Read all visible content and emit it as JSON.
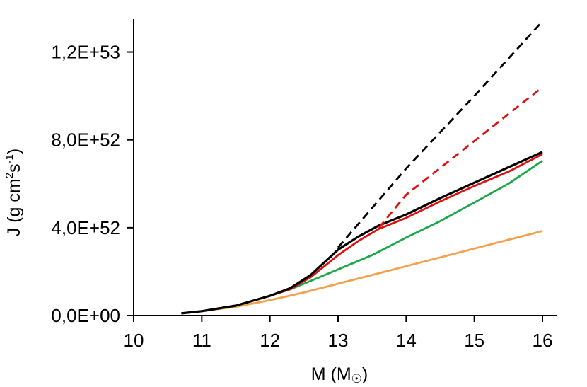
{
  "chart_data": {
    "type": "line",
    "xlabel": "M (M",
    "xlabel_symbol": "☉",
    "xlabel_close": ")",
    "ylabel_main": "J (g cm",
    "ylabel_sup1": "2",
    "ylabel_mid": "s",
    "ylabel_sup2": "-1",
    "ylabel_close": ")",
    "xlim": [
      10,
      16
    ],
    "ylim": [
      0,
      1.35e+53
    ],
    "x_ticks": [
      10,
      11,
      12,
      13,
      14,
      15,
      16
    ],
    "x_tick_labels": [
      "10",
      "11",
      "12",
      "13",
      "14",
      "15",
      "16"
    ],
    "y_ticks": [
      0,
      4e+52,
      8e+52,
      1.2e+53
    ],
    "y_tick_labels": [
      "0,0E+00",
      "4,0E+52",
      "8,0E+52",
      "1,2E+53"
    ],
    "grid": false,
    "legend": "none",
    "series": [
      {
        "color": "#f4a04c",
        "style": "solid",
        "x": [
          10.7,
          11.0,
          11.5,
          12.0,
          12.5,
          13.0,
          13.5,
          14.0,
          14.5,
          15.0,
          15.5,
          16.0
        ],
        "y": [
          1e+51,
          2e+51,
          4e+51,
          7e+51,
          1.05e+52,
          1.45e+52,
          1.85e+52,
          2.25e+52,
          2.65e+52,
          3.05e+52,
          3.45e+52,
          3.85e+52
        ]
      },
      {
        "color": "#1aa84a",
        "style": "solid",
        "x": [
          10.7,
          11.0,
          11.5,
          12.0,
          12.3,
          12.5,
          13.0,
          13.5,
          14.0,
          14.5,
          15.0,
          15.5,
          16.0
        ],
        "y": [
          1e+51,
          2e+51,
          4.5e+51,
          9e+51,
          1.2e+52,
          1.45e+52,
          2.1e+52,
          2.75e+52,
          3.55e+52,
          4.3e+52,
          5.15e+52,
          6e+52,
          7.05e+52
        ]
      },
      {
        "color": "#e01010",
        "style": "solid",
        "x": [
          10.7,
          11.0,
          11.5,
          12.0,
          12.3,
          12.6,
          13.0,
          13.3,
          13.6,
          14.0,
          14.5,
          15.0,
          15.5,
          16.0
        ],
        "y": [
          1e+51,
          2e+51,
          4.5e+51,
          9e+51,
          1.2e+52,
          1.75e+52,
          2.75e+52,
          3.4e+52,
          3.95e+52,
          4.45e+52,
          5.2e+52,
          5.9e+52,
          6.55e+52,
          7.35e+52
        ]
      },
      {
        "color": "#000000",
        "style": "solid",
        "x": [
          10.7,
          11.0,
          11.5,
          12.0,
          12.3,
          12.6,
          13.0,
          13.3,
          13.6,
          14.0,
          14.5,
          15.0,
          15.5,
          16.0
        ],
        "y": [
          1e+51,
          2e+51,
          4.5e+51,
          9e+51,
          1.25e+52,
          1.85e+52,
          3e+52,
          3.6e+52,
          4.1e+52,
          4.6e+52,
          5.35e+52,
          6.05e+52,
          6.75e+52,
          7.45e+52
        ]
      },
      {
        "color": "#e01010",
        "style": "dashed",
        "x": [
          13.6,
          14.0,
          15.0,
          16.0
        ],
        "y": [
          4e+52,
          5.5e+52,
          7.95e+52,
          1.04e+53
        ]
      },
      {
        "color": "#000000",
        "style": "dashed",
        "x": [
          13.0,
          14.0,
          15.0,
          16.0
        ],
        "y": [
          3.1e+52,
          6.7e+52,
          1e+53,
          1.34e+53
        ]
      }
    ]
  }
}
